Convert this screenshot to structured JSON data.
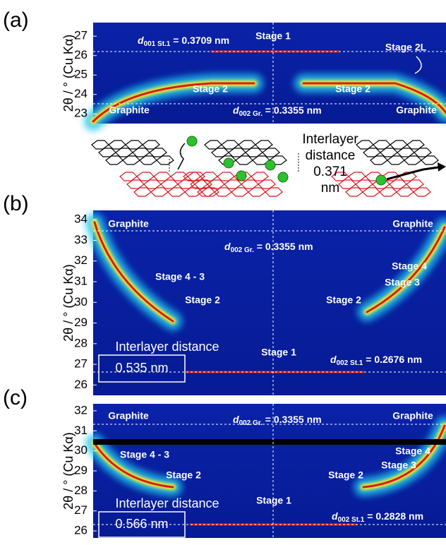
{
  "panels": [
    {
      "label": "(a)",
      "y_axis_label": "2θ / ° (Cu Kα)",
      "ylim": [
        22.5,
        27.7
      ],
      "yticks": [
        23,
        24,
        25,
        26,
        27
      ],
      "annotations": [
        "Stage 1",
        "Stage 2L",
        "Stage 2",
        "Stage 2",
        "Graphite",
        "Graphite"
      ],
      "d_labels": [
        {
          "symbol": "d",
          "subscript": "001 St.1",
          "text": " = 0.3709 nm"
        },
        {
          "symbol": "d",
          "subscript": "002 Gr.",
          "text": " = 0.3355 nm"
        }
      ]
    },
    {
      "label": "(b)",
      "y_axis_label": "2θ / ° (Cu Kα)",
      "ylim": [
        25.5,
        34.45
      ],
      "yticks": [
        26,
        27,
        28,
        29,
        30,
        31,
        32,
        33,
        34
      ],
      "annotations": [
        "Graphite",
        "Graphite",
        "Stage 4 - 3",
        "Stage 2",
        "Stage 4",
        "Stage 3",
        "Stage 2",
        "Stage 1"
      ],
      "d_labels": [
        {
          "symbol": "d",
          "subscript": "002 Gr.",
          "text": " = 0.3355 nm"
        },
        {
          "symbol": "d",
          "subscript": "002 St.1",
          "text": " = 0.2676 nm"
        }
      ],
      "box": {
        "title": "Interlayer distance",
        "value": "0.535 nm"
      }
    },
    {
      "label": "(c)",
      "y_axis_label": "2θ / ° (Cu Kα)",
      "ylim": [
        25.65,
        32.35
      ],
      "yticks": [
        26,
        27,
        28,
        29,
        30,
        31,
        32
      ],
      "annotations": [
        "Graphite",
        "Graphite",
        "Stage 4 - 3",
        "Stage 2",
        "Stage 4",
        "Stage 3",
        "Stage 2",
        "Stage 1"
      ],
      "d_labels": [
        {
          "symbol": "d",
          "subscript": "002 Gr.",
          "text": " = 0.3355 nm"
        },
        {
          "symbol": "d",
          "subscript": "002 St.1",
          "text": " = 0.2828 nm"
        }
      ],
      "box": {
        "title": "Interlayer distance",
        "value": "0.566 nm"
      }
    }
  ],
  "schematic": {
    "interlayer_label": [
      "Interlayer",
      "distance",
      "0.371",
      "nm"
    ]
  }
}
